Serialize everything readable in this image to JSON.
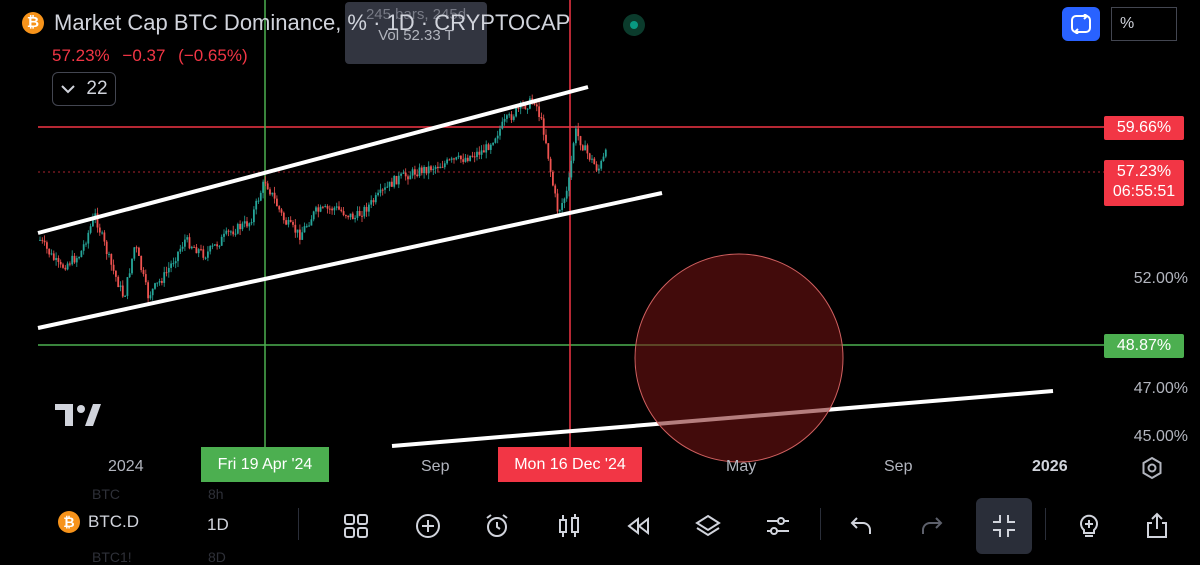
{
  "header": {
    "title": "Market Cap BTC Dominance, % · 1D · CRYPTOCAP",
    "price": "57.23%",
    "change": "−0.37",
    "change_pct": "(−0.65%)",
    "collapse_count": "22",
    "tooltip_bars": "245 bars, 245d",
    "tooltip_vol": "Vol 52.33 T",
    "scale_mode": "%"
  },
  "price_axis": {
    "labels": [
      "52.00%",
      "47.00%",
      "45.00%"
    ],
    "level_red": "59.66%",
    "level_green": "48.87%",
    "current_price": "57.23%",
    "countdown": "06:55:51"
  },
  "time_axis": {
    "labels": [
      "2024",
      "Sep",
      "May",
      "Sep",
      "2026"
    ],
    "cursor_green": "Fri 19 Apr '24",
    "cursor_red": "Mon 16 Dec '24"
  },
  "bottom_bar": {
    "symbol": "BTC.D",
    "interval": "1D",
    "ghost_symbol": "BTC",
    "ghost_interval": "8h",
    "ghost_symbol2": "BTC1!",
    "ghost_interval2": "8D"
  },
  "icons": {
    "coin": "bitcoin-icon",
    "brand": "tradingview-logo",
    "tools": [
      "grid-icon",
      "plus-circle-icon",
      "alarm-icon",
      "candles-icon",
      "replay-icon",
      "layers-icon",
      "sliders-icon",
      "undo-icon",
      "redo-icon",
      "collapse-icon",
      "lightbulb-icon",
      "share-icon"
    ]
  },
  "colors": {
    "up": "#26a69a",
    "down": "#ef5350",
    "red_line": "#f23645",
    "green_line": "#4caf50",
    "channel": "#ffffff",
    "background": "#000000"
  },
  "chart_data": {
    "type": "candlestick",
    "series": "BTC Dominance daily",
    "annotations": [
      "ascending channel",
      "horizontal red level 59.66%",
      "horizontal green level 48.87%",
      "vertical cursor Fri 19 Apr '24",
      "vertical cursor Mon 16 Dec '24",
      "red circle target zone"
    ],
    "current": 57.23,
    "levels": [
      59.66,
      48.87
    ],
    "ticks": [
      52.0,
      47.0,
      45.0
    ]
  }
}
